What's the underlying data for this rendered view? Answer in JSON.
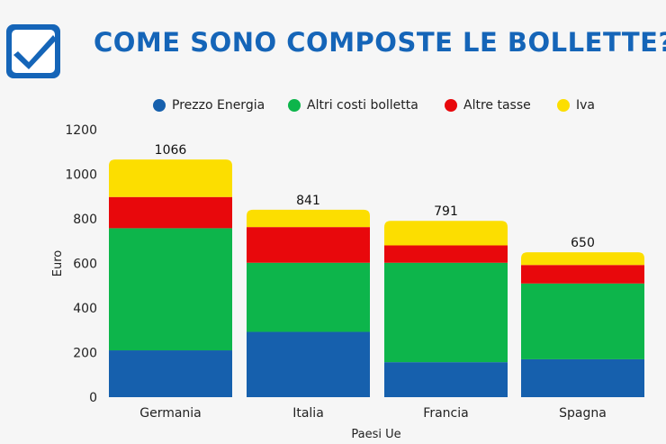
{
  "header": {
    "title": "COME SONO COMPOSTE LE BOLLETTE?",
    "logo_icon": "checkmark-badge-icon"
  },
  "colors": {
    "title": "#1565b8",
    "prezzo_energia": "#1660ad",
    "altri_costi": "#0db54b",
    "altre_tasse": "#e8080c",
    "iva": "#fcde00"
  },
  "chart_data": {
    "type": "bar",
    "stacked": true,
    "title": "COME SONO COMPOSTE LE BOLLETTE?",
    "xlabel": "Paesi Ue",
    "ylabel": "Euro",
    "ylim": [
      0,
      1200
    ],
    "yticks": [
      0,
      200,
      400,
      600,
      800,
      1000,
      1200
    ],
    "categories": [
      "Germania",
      "Italia",
      "Francia",
      "Spagna"
    ],
    "series": [
      {
        "name": "Prezzo Energia",
        "color": "#1660ad",
        "values": [
          210,
          293,
          157,
          170
        ]
      },
      {
        "name": "Altri costi bolletta",
        "color": "#0db54b",
        "values": [
          548,
          310,
          446,
          340
        ]
      },
      {
        "name": "Altre tasse",
        "color": "#e8080c",
        "values": [
          140,
          160,
          78,
          83
        ]
      },
      {
        "name": "Iva",
        "color": "#fcde00",
        "values": [
          168,
          78,
          110,
          57
        ]
      }
    ],
    "totals": [
      1066,
      841,
      791,
      650
    ],
    "legend_position": "top"
  }
}
